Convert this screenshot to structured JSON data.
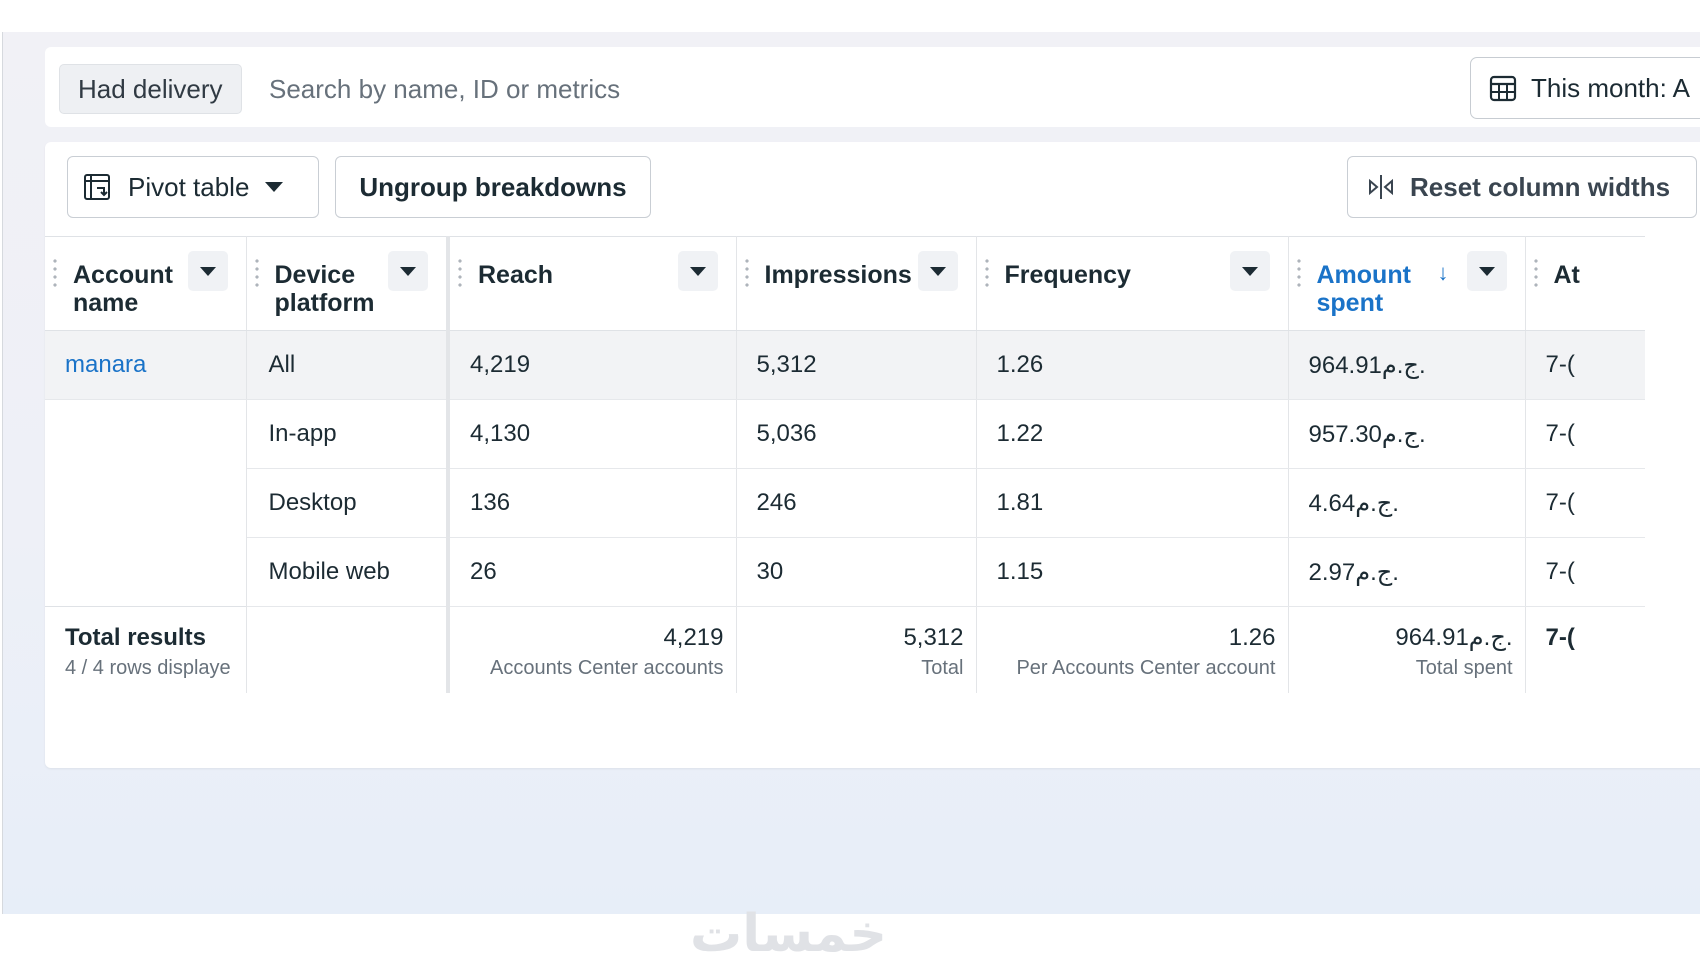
{
  "filters": {
    "chip": "Had delivery",
    "search_placeholder": "Search by name, ID or metrics",
    "date": "This month: A"
  },
  "toolbar": {
    "pivot_label": "Pivot table",
    "ungroup_label": "Ungroup breakdowns",
    "reset_label": "Reset column widths"
  },
  "columns": {
    "account": "Account name",
    "device": "Device platform",
    "reach": "Reach",
    "impressions": "Impressions",
    "frequency": "Frequency",
    "amount": "Amount spent",
    "next": "At"
  },
  "rows": [
    {
      "account": "manara",
      "device": "All",
      "reach": "4,219",
      "impressions": "5,312",
      "frequency": "1.26",
      "amount": "964.91ج.م.",
      "next": "7-("
    },
    {
      "account": "",
      "device": "In-app",
      "reach": "4,130",
      "impressions": "5,036",
      "frequency": "1.22",
      "amount": "957.30ج.م.",
      "next": "7-("
    },
    {
      "account": "",
      "device": "Desktop",
      "reach": "136",
      "impressions": "246",
      "frequency": "1.81",
      "amount": "4.64ج.م.",
      "next": "7-("
    },
    {
      "account": "",
      "device": "Mobile web",
      "reach": "26",
      "impressions": "30",
      "frequency": "1.15",
      "amount": "2.97ج.م.",
      "next": "7-("
    }
  ],
  "totals": {
    "title": "Total results",
    "subtitle": "4 / 4 rows displaye",
    "reach": "4,219",
    "reach_label": "Accounts Center accounts",
    "impressions": "5,312",
    "impressions_label": "Total",
    "frequency": "1.26",
    "frequency_label": "Per Accounts Center account",
    "amount": "964.91ج.م.",
    "amount_label": "Total spent",
    "next": "7-("
  },
  "watermark": "خمسات",
  "colors": {
    "accent": "#1a73c8",
    "text": "#1c2b33",
    "muted": "#67717b"
  }
}
